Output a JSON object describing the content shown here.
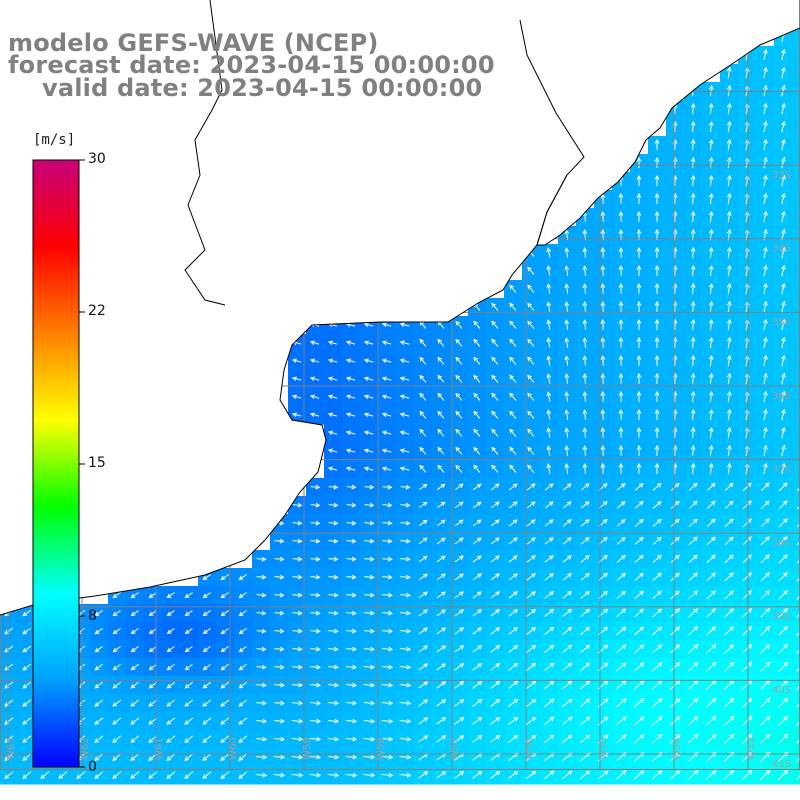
{
  "title": {
    "line1": "modelo GEFS-WAVE (NCEP)",
    "line2": "forecast date: 2023-04-15 00:00:00",
    "line3": "valid date: 2023-04-15 00:00:00"
  },
  "colorbar": {
    "unit": "[m/s]",
    "ticks": [
      "30",
      "22",
      "15",
      "8",
      "0"
    ],
    "min": 0,
    "max": 30,
    "colors": [
      "#0000ff",
      "#00a0ff",
      "#00ffff",
      "#00ff00",
      "#ffff00",
      "#ff8000",
      "#ff0000",
      "#c8007a"
    ]
  },
  "map": {
    "lon_labels": [
      "W63",
      "W62",
      "W61",
      "W60",
      "W59",
      "W58",
      "W57",
      "W56",
      "W55",
      "W54",
      "W53"
    ],
    "lat_labels": [
      "33S",
      "34S",
      "35S",
      "36S",
      "37S",
      "38S",
      "39S",
      "40S",
      "41S"
    ],
    "land_color": "#ffffff",
    "grid_color": "#808080",
    "coast_color": "#000000"
  }
}
